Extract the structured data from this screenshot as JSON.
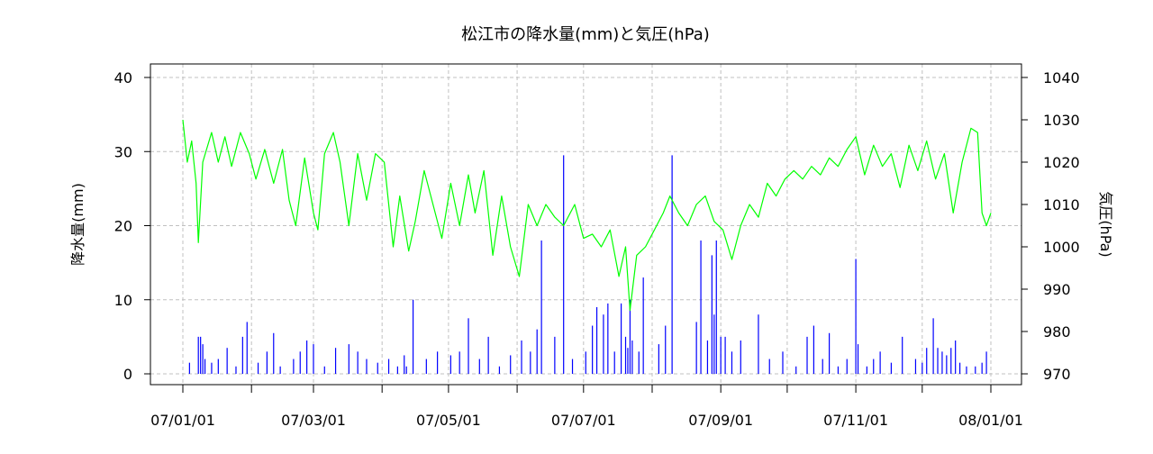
{
  "chart_data": {
    "type": "line",
    "title": "松江市の降水量(mm)と気圧(hPa)",
    "ylabel_left": "降水量(mm)",
    "ylabel_right": "気圧(hPa)",
    "x_range": [
      "2007-01-01",
      "2008-01-01"
    ],
    "x_ticks": [
      {
        "date": "2007-01-01",
        "label": "07/01/01"
      },
      {
        "date": "2007-02-01",
        "label": ""
      },
      {
        "date": "2007-03-01",
        "label": "07/03/01"
      },
      {
        "date": "2007-04-01",
        "label": ""
      },
      {
        "date": "2007-05-01",
        "label": "07/05/01"
      },
      {
        "date": "2007-06-01",
        "label": ""
      },
      {
        "date": "2007-07-01",
        "label": "07/07/01"
      },
      {
        "date": "2007-08-01",
        "label": ""
      },
      {
        "date": "2007-09-01",
        "label": "07/09/01"
      },
      {
        "date": "2007-10-01",
        "label": ""
      },
      {
        "date": "2007-11-01",
        "label": "07/11/01"
      },
      {
        "date": "2007-12-01",
        "label": ""
      },
      {
        "date": "2008-01-01",
        "label": "08/01/01"
      }
    ],
    "ylim_left": [
      0,
      40
    ],
    "yticks_left": [
      0,
      10,
      20,
      30,
      40
    ],
    "ylim_right": [
      970,
      1040
    ],
    "yticks_right": [
      970,
      980,
      990,
      1000,
      1010,
      1020,
      1030,
      1040
    ],
    "grid": true,
    "colors": {
      "precip": "#0000ff",
      "pressure": "#00ff00",
      "grid": "#c0c0c0"
    },
    "series": [
      {
        "kind": "bar",
        "axis": "left",
        "points": [
          [
            "2007-01-04",
            1.5
          ],
          [
            "2007-01-08",
            5.0
          ],
          [
            "2007-01-09",
            5.0
          ],
          [
            "2007-01-10",
            4.0
          ],
          [
            "2007-01-11",
            2.0
          ],
          [
            "2007-01-14",
            1.5
          ],
          [
            "2007-01-17",
            2.0
          ],
          [
            "2007-01-21",
            3.5
          ],
          [
            "2007-01-25",
            1.0
          ],
          [
            "2007-01-28",
            5.0
          ],
          [
            "2007-01-30",
            7.0
          ],
          [
            "2007-02-04",
            1.5
          ],
          [
            "2007-02-08",
            3.0
          ],
          [
            "2007-02-11",
            5.5
          ],
          [
            "2007-02-14",
            1.0
          ],
          [
            "2007-02-20",
            2.0
          ],
          [
            "2007-02-23",
            3.0
          ],
          [
            "2007-02-26",
            4.5
          ],
          [
            "2007-03-01",
            4.0
          ],
          [
            "2007-03-06",
            1.0
          ],
          [
            "2007-03-11",
            3.5
          ],
          [
            "2007-03-17",
            4.0
          ],
          [
            "2007-03-21",
            3.0
          ],
          [
            "2007-03-25",
            2.0
          ],
          [
            "2007-03-30",
            1.5
          ],
          [
            "2007-04-04",
            2.0
          ],
          [
            "2007-04-08",
            1.0
          ],
          [
            "2007-04-11",
            2.5
          ],
          [
            "2007-04-12",
            1.0
          ],
          [
            "2007-04-15",
            10.0
          ],
          [
            "2007-04-21",
            2.0
          ],
          [
            "2007-04-26",
            3.0
          ],
          [
            "2007-05-02",
            2.5
          ],
          [
            "2007-05-06",
            3.0
          ],
          [
            "2007-05-10",
            7.5
          ],
          [
            "2007-05-15",
            2.0
          ],
          [
            "2007-05-19",
            5.0
          ],
          [
            "2007-05-24",
            1.0
          ],
          [
            "2007-05-29",
            2.5
          ],
          [
            "2007-06-03",
            4.5
          ],
          [
            "2007-06-07",
            3.0
          ],
          [
            "2007-06-10",
            6.0
          ],
          [
            "2007-06-12",
            18.0
          ],
          [
            "2007-06-18",
            5.0
          ],
          [
            "2007-06-22",
            29.5
          ],
          [
            "2007-06-26",
            2.0
          ],
          [
            "2007-07-02",
            3.0
          ],
          [
            "2007-07-05",
            6.5
          ],
          [
            "2007-07-07",
            9.0
          ],
          [
            "2007-07-10",
            8.0
          ],
          [
            "2007-07-12",
            9.5
          ],
          [
            "2007-07-15",
            3.0
          ],
          [
            "2007-07-18",
            9.5
          ],
          [
            "2007-07-20",
            5.0
          ],
          [
            "2007-07-21",
            3.5
          ],
          [
            "2007-07-22",
            10.0
          ],
          [
            "2007-07-23",
            4.5
          ],
          [
            "2007-07-26",
            3.0
          ],
          [
            "2007-07-28",
            13.0
          ],
          [
            "2007-08-04",
            4.0
          ],
          [
            "2007-08-07",
            6.5
          ],
          [
            "2007-08-10",
            29.5
          ],
          [
            "2007-08-21",
            7.0
          ],
          [
            "2007-08-23",
            18.0
          ],
          [
            "2007-08-26",
            4.5
          ],
          [
            "2007-08-28",
            16.0
          ],
          [
            "2007-08-29",
            8.0
          ],
          [
            "2007-08-30",
            18.0
          ],
          [
            "2007-09-01",
            5.0
          ],
          [
            "2007-09-03",
            5.0
          ],
          [
            "2007-09-06",
            3.0
          ],
          [
            "2007-09-10",
            4.5
          ],
          [
            "2007-09-18",
            8.0
          ],
          [
            "2007-09-23",
            2.0
          ],
          [
            "2007-09-29",
            3.0
          ],
          [
            "2007-10-05",
            1.0
          ],
          [
            "2007-10-10",
            5.0
          ],
          [
            "2007-10-13",
            6.5
          ],
          [
            "2007-10-17",
            2.0
          ],
          [
            "2007-10-20",
            5.5
          ],
          [
            "2007-10-24",
            1.0
          ],
          [
            "2007-10-28",
            2.0
          ],
          [
            "2007-11-01",
            15.5
          ],
          [
            "2007-11-02",
            4.0
          ],
          [
            "2007-11-06",
            1.0
          ],
          [
            "2007-11-09",
            2.0
          ],
          [
            "2007-11-12",
            3.0
          ],
          [
            "2007-11-17",
            1.5
          ],
          [
            "2007-11-22",
            5.0
          ],
          [
            "2007-11-28",
            2.0
          ],
          [
            "2007-12-01",
            1.5
          ],
          [
            "2007-12-03",
            3.5
          ],
          [
            "2007-12-06",
            7.5
          ],
          [
            "2007-12-08",
            3.5
          ],
          [
            "2007-12-10",
            3.0
          ],
          [
            "2007-12-12",
            2.5
          ],
          [
            "2007-12-14",
            3.5
          ],
          [
            "2007-12-16",
            4.5
          ],
          [
            "2007-12-18",
            1.5
          ],
          [
            "2007-12-21",
            1.0
          ],
          [
            "2007-12-25",
            1.0
          ],
          [
            "2007-12-28",
            1.5
          ],
          [
            "2007-12-30",
            3.0
          ]
        ]
      },
      {
        "kind": "line",
        "axis": "right",
        "points": [
          [
            "2007-01-01",
            1030
          ],
          [
            "2007-01-03",
            1020
          ],
          [
            "2007-01-05",
            1025
          ],
          [
            "2007-01-07",
            1015
          ],
          [
            "2007-01-08",
            1001
          ],
          [
            "2007-01-10",
            1020
          ],
          [
            "2007-01-14",
            1027
          ],
          [
            "2007-01-17",
            1020
          ],
          [
            "2007-01-20",
            1026
          ],
          [
            "2007-01-23",
            1019
          ],
          [
            "2007-01-27",
            1027
          ],
          [
            "2007-01-31",
            1022
          ],
          [
            "2007-02-03",
            1016
          ],
          [
            "2007-02-07",
            1023
          ],
          [
            "2007-02-11",
            1015
          ],
          [
            "2007-02-15",
            1023
          ],
          [
            "2007-02-18",
            1011
          ],
          [
            "2007-02-21",
            1005
          ],
          [
            "2007-02-25",
            1021
          ],
          [
            "2007-03-01",
            1008
          ],
          [
            "2007-03-03",
            1004
          ],
          [
            "2007-03-06",
            1022
          ],
          [
            "2007-03-10",
            1027
          ],
          [
            "2007-03-13",
            1020
          ],
          [
            "2007-03-17",
            1005
          ],
          [
            "2007-03-21",
            1022
          ],
          [
            "2007-03-25",
            1011
          ],
          [
            "2007-03-29",
            1022
          ],
          [
            "2007-04-02",
            1020
          ],
          [
            "2007-04-06",
            1000
          ],
          [
            "2007-04-09",
            1012
          ],
          [
            "2007-04-13",
            999
          ],
          [
            "2007-04-16",
            1006
          ],
          [
            "2007-04-20",
            1018
          ],
          [
            "2007-04-24",
            1010
          ],
          [
            "2007-04-28",
            1002
          ],
          [
            "2007-05-02",
            1015
          ],
          [
            "2007-05-06",
            1005
          ],
          [
            "2007-05-10",
            1017
          ],
          [
            "2007-05-13",
            1008
          ],
          [
            "2007-05-17",
            1018
          ],
          [
            "2007-05-21",
            998
          ],
          [
            "2007-05-25",
            1012
          ],
          [
            "2007-05-29",
            1000
          ],
          [
            "2007-06-02",
            993
          ],
          [
            "2007-06-06",
            1010
          ],
          [
            "2007-06-10",
            1005
          ],
          [
            "2007-06-14",
            1010
          ],
          [
            "2007-06-18",
            1007
          ],
          [
            "2007-06-22",
            1005
          ],
          [
            "2007-06-27",
            1010
          ],
          [
            "2007-07-01",
            1002
          ],
          [
            "2007-07-05",
            1003
          ],
          [
            "2007-07-09",
            1000
          ],
          [
            "2007-07-13",
            1004
          ],
          [
            "2007-07-17",
            993
          ],
          [
            "2007-07-20",
            1000
          ],
          [
            "2007-07-22",
            985
          ],
          [
            "2007-07-25",
            998
          ],
          [
            "2007-07-29",
            1000
          ],
          [
            "2007-08-02",
            1004
          ],
          [
            "2007-08-06",
            1008
          ],
          [
            "2007-08-09",
            1012
          ],
          [
            "2007-08-13",
            1008
          ],
          [
            "2007-08-17",
            1005
          ],
          [
            "2007-08-21",
            1010
          ],
          [
            "2007-08-25",
            1012
          ],
          [
            "2007-08-29",
            1006
          ],
          [
            "2007-09-02",
            1004
          ],
          [
            "2007-09-06",
            997
          ],
          [
            "2007-09-10",
            1005
          ],
          [
            "2007-09-14",
            1010
          ],
          [
            "2007-09-18",
            1007
          ],
          [
            "2007-09-22",
            1015
          ],
          [
            "2007-09-26",
            1012
          ],
          [
            "2007-09-30",
            1016
          ],
          [
            "2007-10-04",
            1018
          ],
          [
            "2007-10-08",
            1016
          ],
          [
            "2007-10-12",
            1019
          ],
          [
            "2007-10-16",
            1017
          ],
          [
            "2007-10-20",
            1021
          ],
          [
            "2007-10-24",
            1019
          ],
          [
            "2007-10-28",
            1023
          ],
          [
            "2007-11-01",
            1026
          ],
          [
            "2007-11-05",
            1017
          ],
          [
            "2007-11-09",
            1024
          ],
          [
            "2007-11-13",
            1019
          ],
          [
            "2007-11-17",
            1022
          ],
          [
            "2007-11-21",
            1014
          ],
          [
            "2007-11-25",
            1024
          ],
          [
            "2007-11-29",
            1018
          ],
          [
            "2007-12-03",
            1025
          ],
          [
            "2007-12-07",
            1016
          ],
          [
            "2007-12-11",
            1022
          ],
          [
            "2007-12-15",
            1008
          ],
          [
            "2007-12-19",
            1020
          ],
          [
            "2007-12-23",
            1028
          ],
          [
            "2007-12-26",
            1027
          ],
          [
            "2007-12-28",
            1008
          ],
          [
            "2007-12-30",
            1005
          ],
          [
            "2008-01-01",
            1008
          ]
        ]
      }
    ]
  }
}
